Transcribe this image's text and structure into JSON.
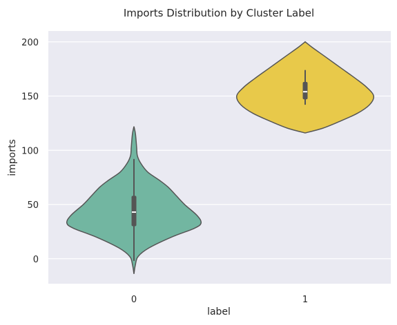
{
  "chart_data": {
    "type": "violin",
    "title": "Imports Distribution by Cluster Label",
    "xlabel": "label",
    "ylabel": "imports",
    "categories": [
      "0",
      "1"
    ],
    "ylim": [
      -23,
      210
    ],
    "yticks": [
      0,
      50,
      100,
      150,
      200
    ],
    "grid": true,
    "background_color": "#eaeaf2",
    "grid_color": "#ffffff",
    "outline_color": "#555555",
    "series": [
      {
        "category": "0",
        "color": "#72b6a1",
        "min": -14,
        "max": 122,
        "whisker_low": -2,
        "whisker_high": 92,
        "q1": 30,
        "median": 43,
        "q3": 58,
        "density_profile": [
          [
            -14,
            0.0
          ],
          [
            -6,
            0.02
          ],
          [
            2,
            0.06
          ],
          [
            10,
            0.22
          ],
          [
            20,
            0.55
          ],
          [
            28,
            0.88
          ],
          [
            33,
            0.98
          ],
          [
            40,
            0.92
          ],
          [
            50,
            0.74
          ],
          [
            58,
            0.62
          ],
          [
            66,
            0.5
          ],
          [
            72,
            0.38
          ],
          [
            80,
            0.2
          ],
          [
            88,
            0.1
          ],
          [
            95,
            0.05
          ],
          [
            102,
            0.04
          ],
          [
            110,
            0.03
          ],
          [
            116,
            0.02
          ],
          [
            122,
            0.0
          ]
        ]
      },
      {
        "category": "1",
        "color": "#e8c94a",
        "min": 116,
        "max": 200,
        "whisker_low": 142,
        "whisker_high": 174,
        "q1": 147,
        "median": 154,
        "q3": 163,
        "density_profile": [
          [
            116,
            0.0
          ],
          [
            120,
            0.24
          ],
          [
            126,
            0.48
          ],
          [
            134,
            0.76
          ],
          [
            142,
            0.94
          ],
          [
            150,
            1.0
          ],
          [
            158,
            0.9
          ],
          [
            166,
            0.74
          ],
          [
            176,
            0.52
          ],
          [
            186,
            0.3
          ],
          [
            195,
            0.1
          ],
          [
            200,
            0.0
          ]
        ]
      }
    ]
  }
}
